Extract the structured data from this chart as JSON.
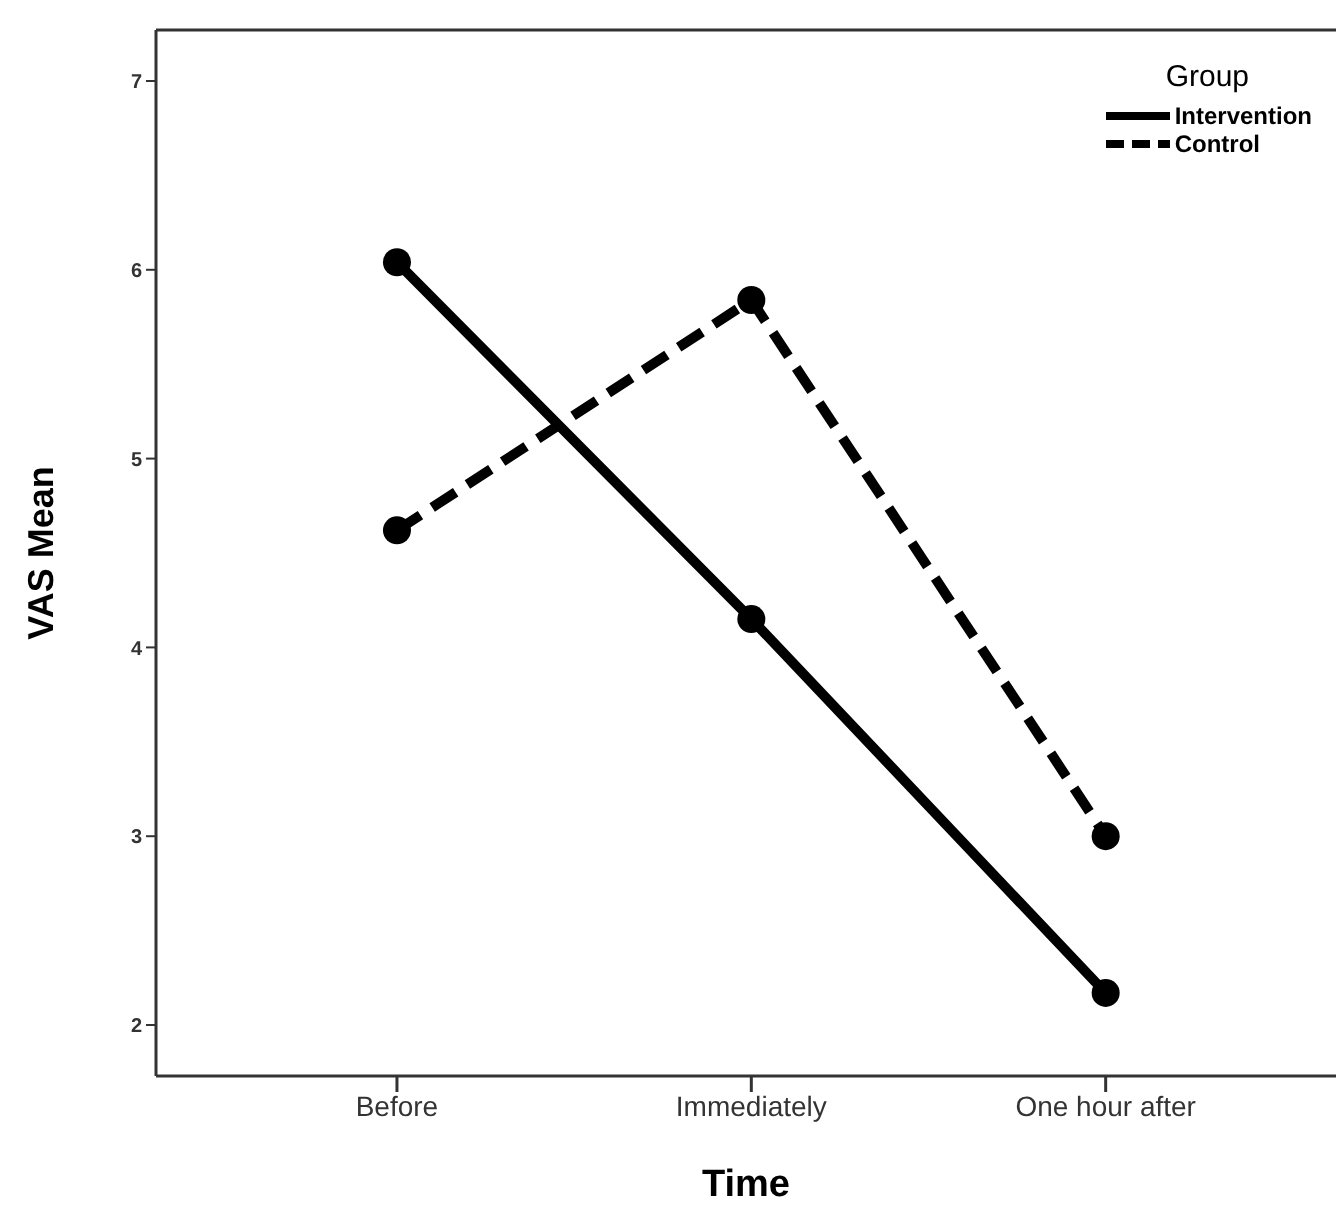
{
  "chart_data": {
    "type": "line",
    "xlabel": "Time",
    "ylabel": "VAS Mean",
    "legend_title": "Group",
    "categories": [
      "Before",
      "Immediately",
      "One hour after"
    ],
    "series": [
      {
        "name": "Intervention",
        "color": "#000000",
        "line_style": "solid",
        "values": [
          6.04,
          4.15,
          2.17
        ]
      },
      {
        "name": "Control",
        "color": "#000000",
        "line_style": "dashed",
        "values": [
          4.62,
          5.84,
          3.0
        ]
      }
    ],
    "ylim": [
      1.73,
      7.27
    ],
    "yticks": [
      2,
      3,
      4,
      5,
      6,
      7
    ],
    "grid": false,
    "legend": "top right",
    "marker": "circle"
  }
}
